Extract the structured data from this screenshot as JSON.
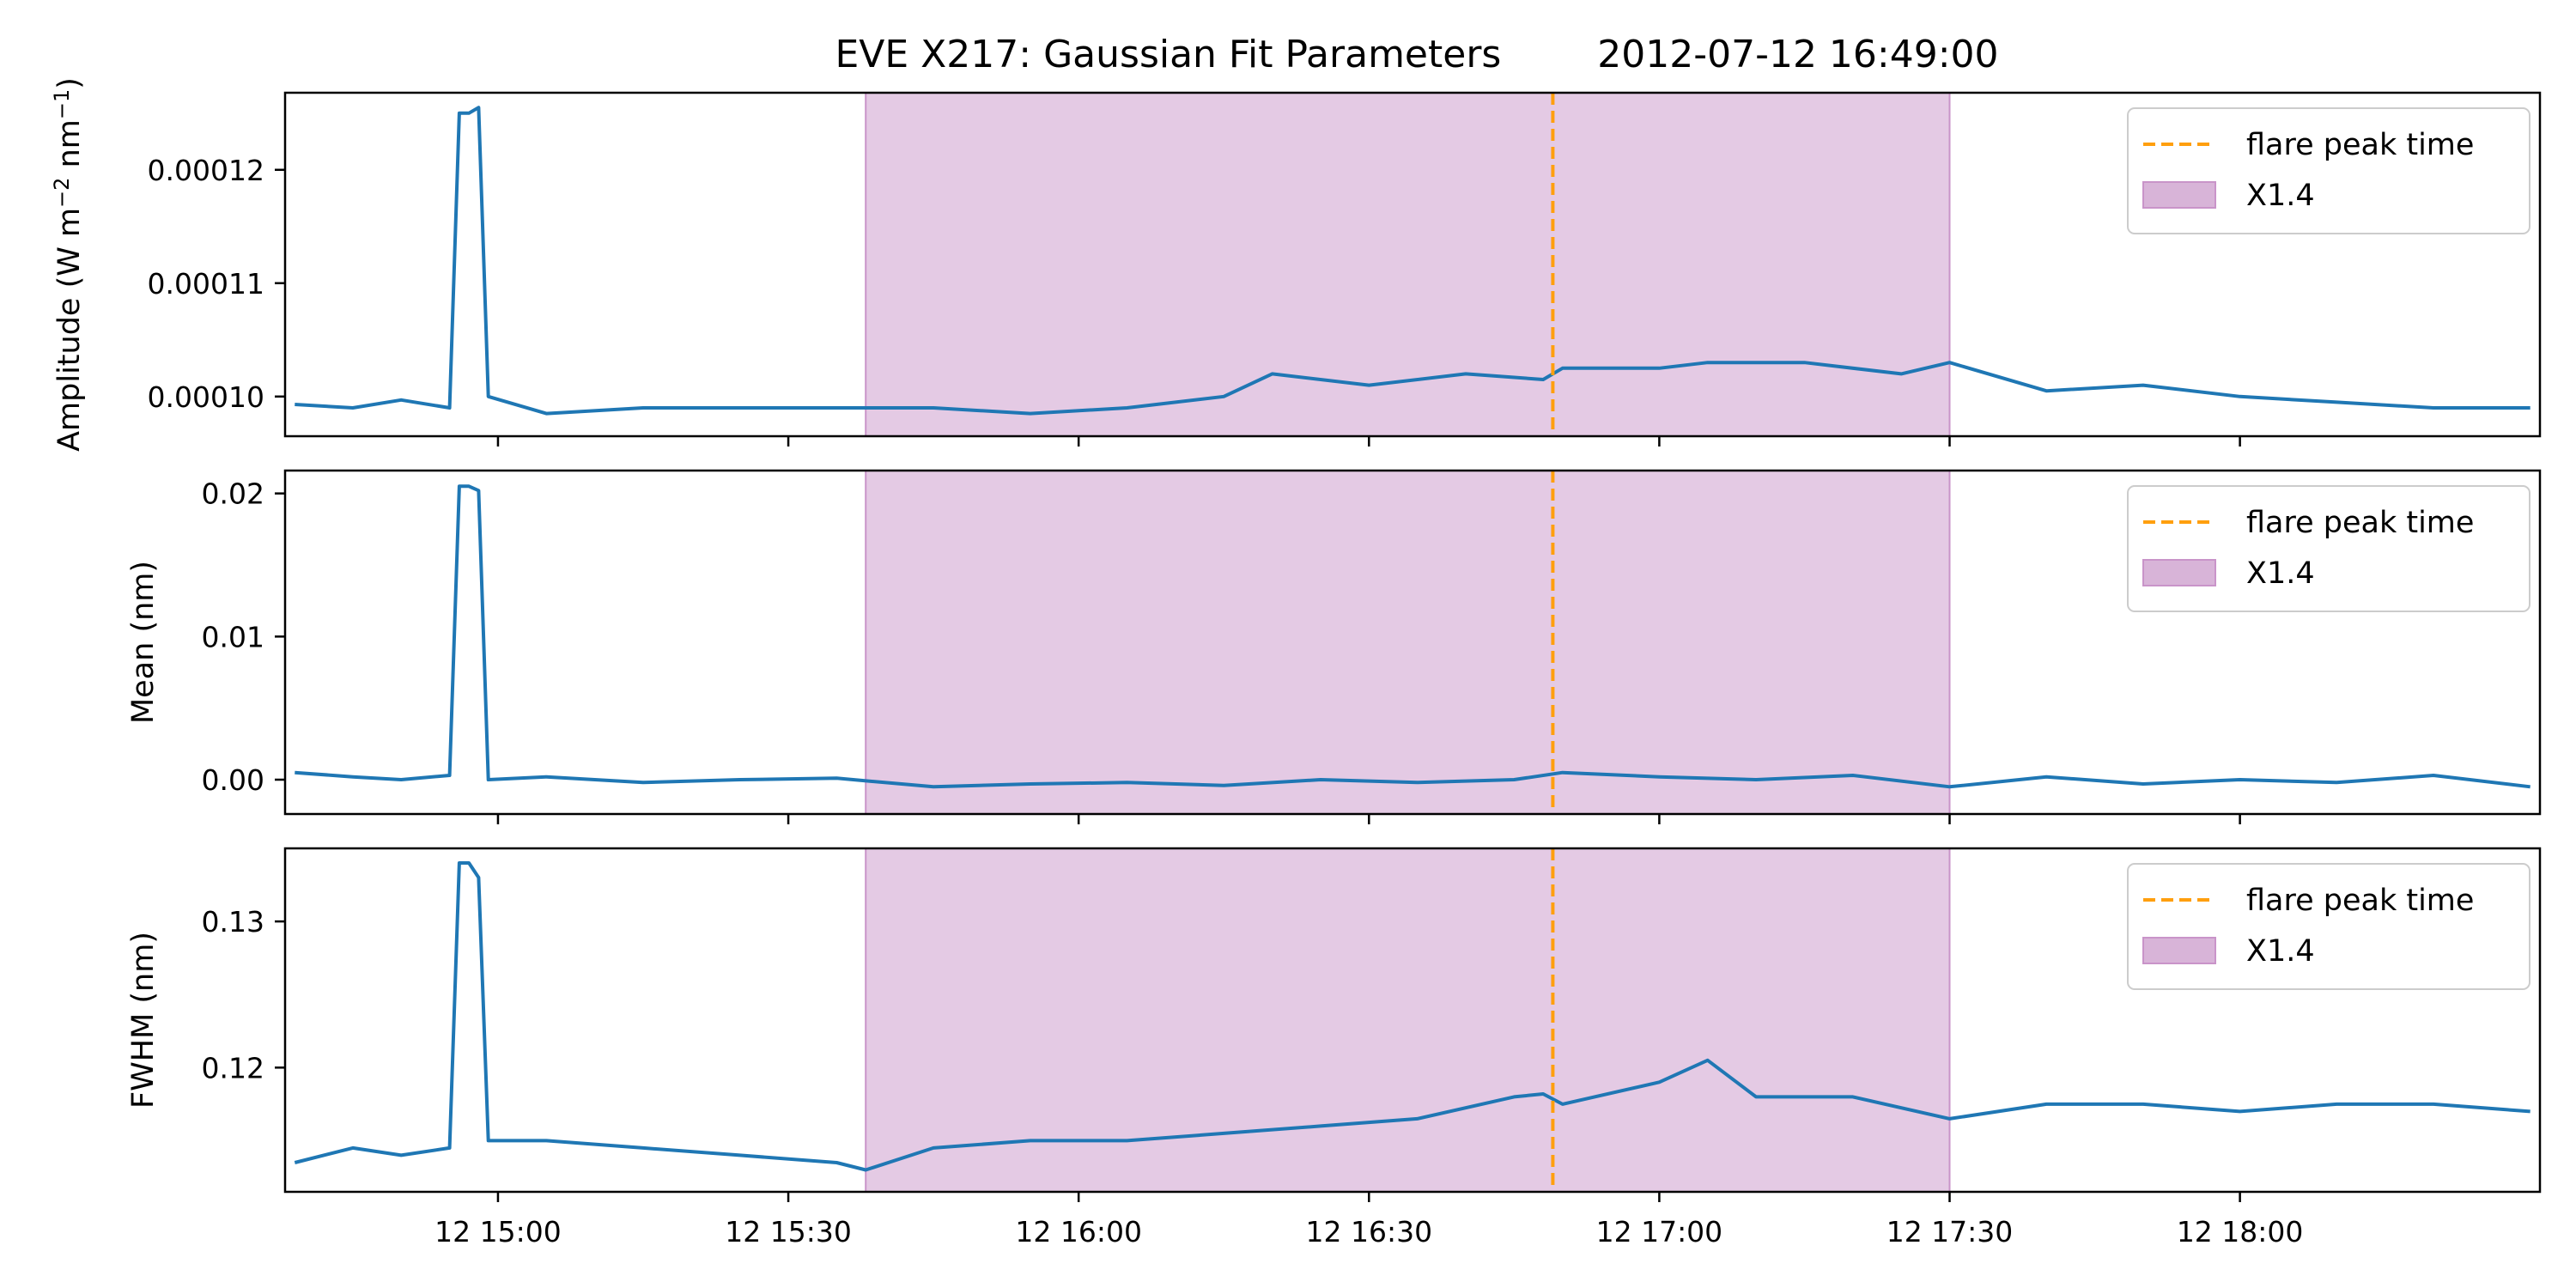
{
  "title": "EVE X217: Gaussian Fit Parameters        2012-07-12 16:49:00",
  "colors": {
    "series": "#1f77b4",
    "flare_line": "#ff9f0e",
    "flare_band": "#d8b4d8",
    "axes": "#000000"
  },
  "chart_data": [
    {
      "type": "line",
      "ylabel_text": "Amplitude (W m",
      "ylabel_unit_mid": " nm",
      "ylabel_sup1": "−2",
      "ylabel_sup2": "−1",
      "ylabel_close": ")",
      "xlim": [
        "2012-07-12 14:38",
        "2012-07-12 18:31"
      ],
      "ylim": [
        9.65e-05,
        0.0001268
      ],
      "yticks": [
        0.0001,
        0.00011,
        0.00012
      ],
      "ytick_labels": [
        "0.00010",
        "0.00011",
        "0.00012"
      ],
      "grid": false,
      "legend": {
        "position": "top-right",
        "entries": [
          "flare peak time",
          "X1.4"
        ]
      },
      "flare_peak_time": "2012-07-12 16:49",
      "flare_band": [
        "2012-07-12 15:38",
        "2012-07-12 17:30"
      ],
      "series": [
        {
          "x": [
            "14:39",
            "14:45",
            "14:50",
            "14:55",
            "14:56",
            "14:57",
            "14:58",
            "14:59",
            "15:05",
            "15:15",
            "15:25",
            "15:35",
            "15:45",
            "15:55",
            "16:05",
            "16:15",
            "16:20",
            "16:30",
            "16:40",
            "16:48",
            "16:50",
            "17:00",
            "17:05",
            "17:15",
            "17:25",
            "17:30",
            "17:40",
            "17:50",
            "18:00",
            "18:10",
            "18:20",
            "18:30"
          ],
          "values": [
            9.93e-05,
            9.9e-05,
            9.97e-05,
            9.9e-05,
            0.000125,
            0.000125,
            0.0001255,
            0.0001,
            9.85e-05,
            9.9e-05,
            9.9e-05,
            9.9e-05,
            9.9e-05,
            9.85e-05,
            9.9e-05,
            0.0001,
            0.000102,
            0.000101,
            0.000102,
            0.0001015,
            0.0001025,
            0.0001025,
            0.000103,
            0.000103,
            0.000102,
            0.000103,
            0.0001005,
            0.000101,
            0.0001,
            9.95e-05,
            9.9e-05,
            9.9e-05
          ]
        }
      ]
    },
    {
      "type": "line",
      "ylabel": "Mean (nm)",
      "xlim": [
        "2012-07-12 14:38",
        "2012-07-12 18:31"
      ],
      "ylim": [
        -0.0024,
        0.0216
      ],
      "yticks": [
        0.0,
        0.01,
        0.02
      ],
      "ytick_labels": [
        "0.00",
        "0.01",
        "0.02"
      ],
      "grid": false,
      "legend": {
        "position": "top-right",
        "entries": [
          "flare peak time",
          "X1.4"
        ]
      },
      "flare_peak_time": "2012-07-12 16:49",
      "flare_band": [
        "2012-07-12 15:38",
        "2012-07-12 17:30"
      ],
      "series": [
        {
          "x": [
            "14:39",
            "14:45",
            "14:50",
            "14:55",
            "14:56",
            "14:57",
            "14:58",
            "14:59",
            "15:05",
            "15:15",
            "15:25",
            "15:35",
            "15:45",
            "15:55",
            "16:05",
            "16:15",
            "16:25",
            "16:35",
            "16:45",
            "16:50",
            "17:00",
            "17:10",
            "17:20",
            "17:30",
            "17:40",
            "17:50",
            "18:00",
            "18:10",
            "18:20",
            "18:30"
          ],
          "values": [
            0.0005,
            0.0002,
            0.0,
            0.0003,
            0.0205,
            0.0205,
            0.0202,
            0.0,
            0.0002,
            -0.0002,
            0.0,
            0.0001,
            -0.0005,
            -0.0003,
            -0.0002,
            -0.0004,
            0.0,
            -0.0002,
            0.0,
            0.0005,
            0.0002,
            0.0,
            0.0003,
            -0.0005,
            0.0002,
            -0.0003,
            0.0,
            -0.0002,
            0.0003,
            -0.0005
          ]
        }
      ]
    },
    {
      "type": "line",
      "ylabel": "FWHM (nm)",
      "xlim": [
        "2012-07-12 14:38",
        "2012-07-12 18:31"
      ],
      "ylim": [
        0.1115,
        0.135
      ],
      "yticks": [
        0.12,
        0.13
      ],
      "ytick_labels": [
        "0.12",
        "0.13"
      ],
      "grid": false,
      "legend": {
        "position": "top-right",
        "entries": [
          "flare peak time",
          "X1.4"
        ]
      },
      "flare_peak_time": "2012-07-12 16:49",
      "flare_band": [
        "2012-07-12 15:38",
        "2012-07-12 17:30"
      ],
      "series": [
        {
          "x": [
            "14:39",
            "14:45",
            "14:50",
            "14:55",
            "14:56",
            "14:57",
            "14:58",
            "14:59",
            "15:05",
            "15:15",
            "15:25",
            "15:35",
            "15:38",
            "15:45",
            "15:55",
            "16:05",
            "16:15",
            "16:25",
            "16:35",
            "16:45",
            "16:48",
            "16:50",
            "17:00",
            "17:05",
            "17:10",
            "17:20",
            "17:30",
            "17:40",
            "17:50",
            "18:00",
            "18:10",
            "18:20",
            "18:30"
          ],
          "values": [
            0.1135,
            0.1145,
            0.114,
            0.1145,
            0.134,
            0.134,
            0.133,
            0.115,
            0.115,
            0.1145,
            0.114,
            0.1135,
            0.113,
            0.1145,
            0.115,
            0.115,
            0.1155,
            0.116,
            0.1165,
            0.118,
            0.1182,
            0.1175,
            0.119,
            0.1205,
            0.118,
            0.118,
            0.1165,
            0.1175,
            0.1175,
            0.117,
            0.1175,
            0.1175,
            0.117
          ]
        }
      ]
    }
  ],
  "xtick_labels": [
    "12 15:00",
    "12 15:30",
    "12 16:00",
    "12 16:30",
    "12 17:00",
    "12 17:30",
    "12 18:00"
  ],
  "xtick_times": [
    "15:00",
    "15:30",
    "16:00",
    "16:30",
    "17:00",
    "17:30",
    "18:00"
  ]
}
